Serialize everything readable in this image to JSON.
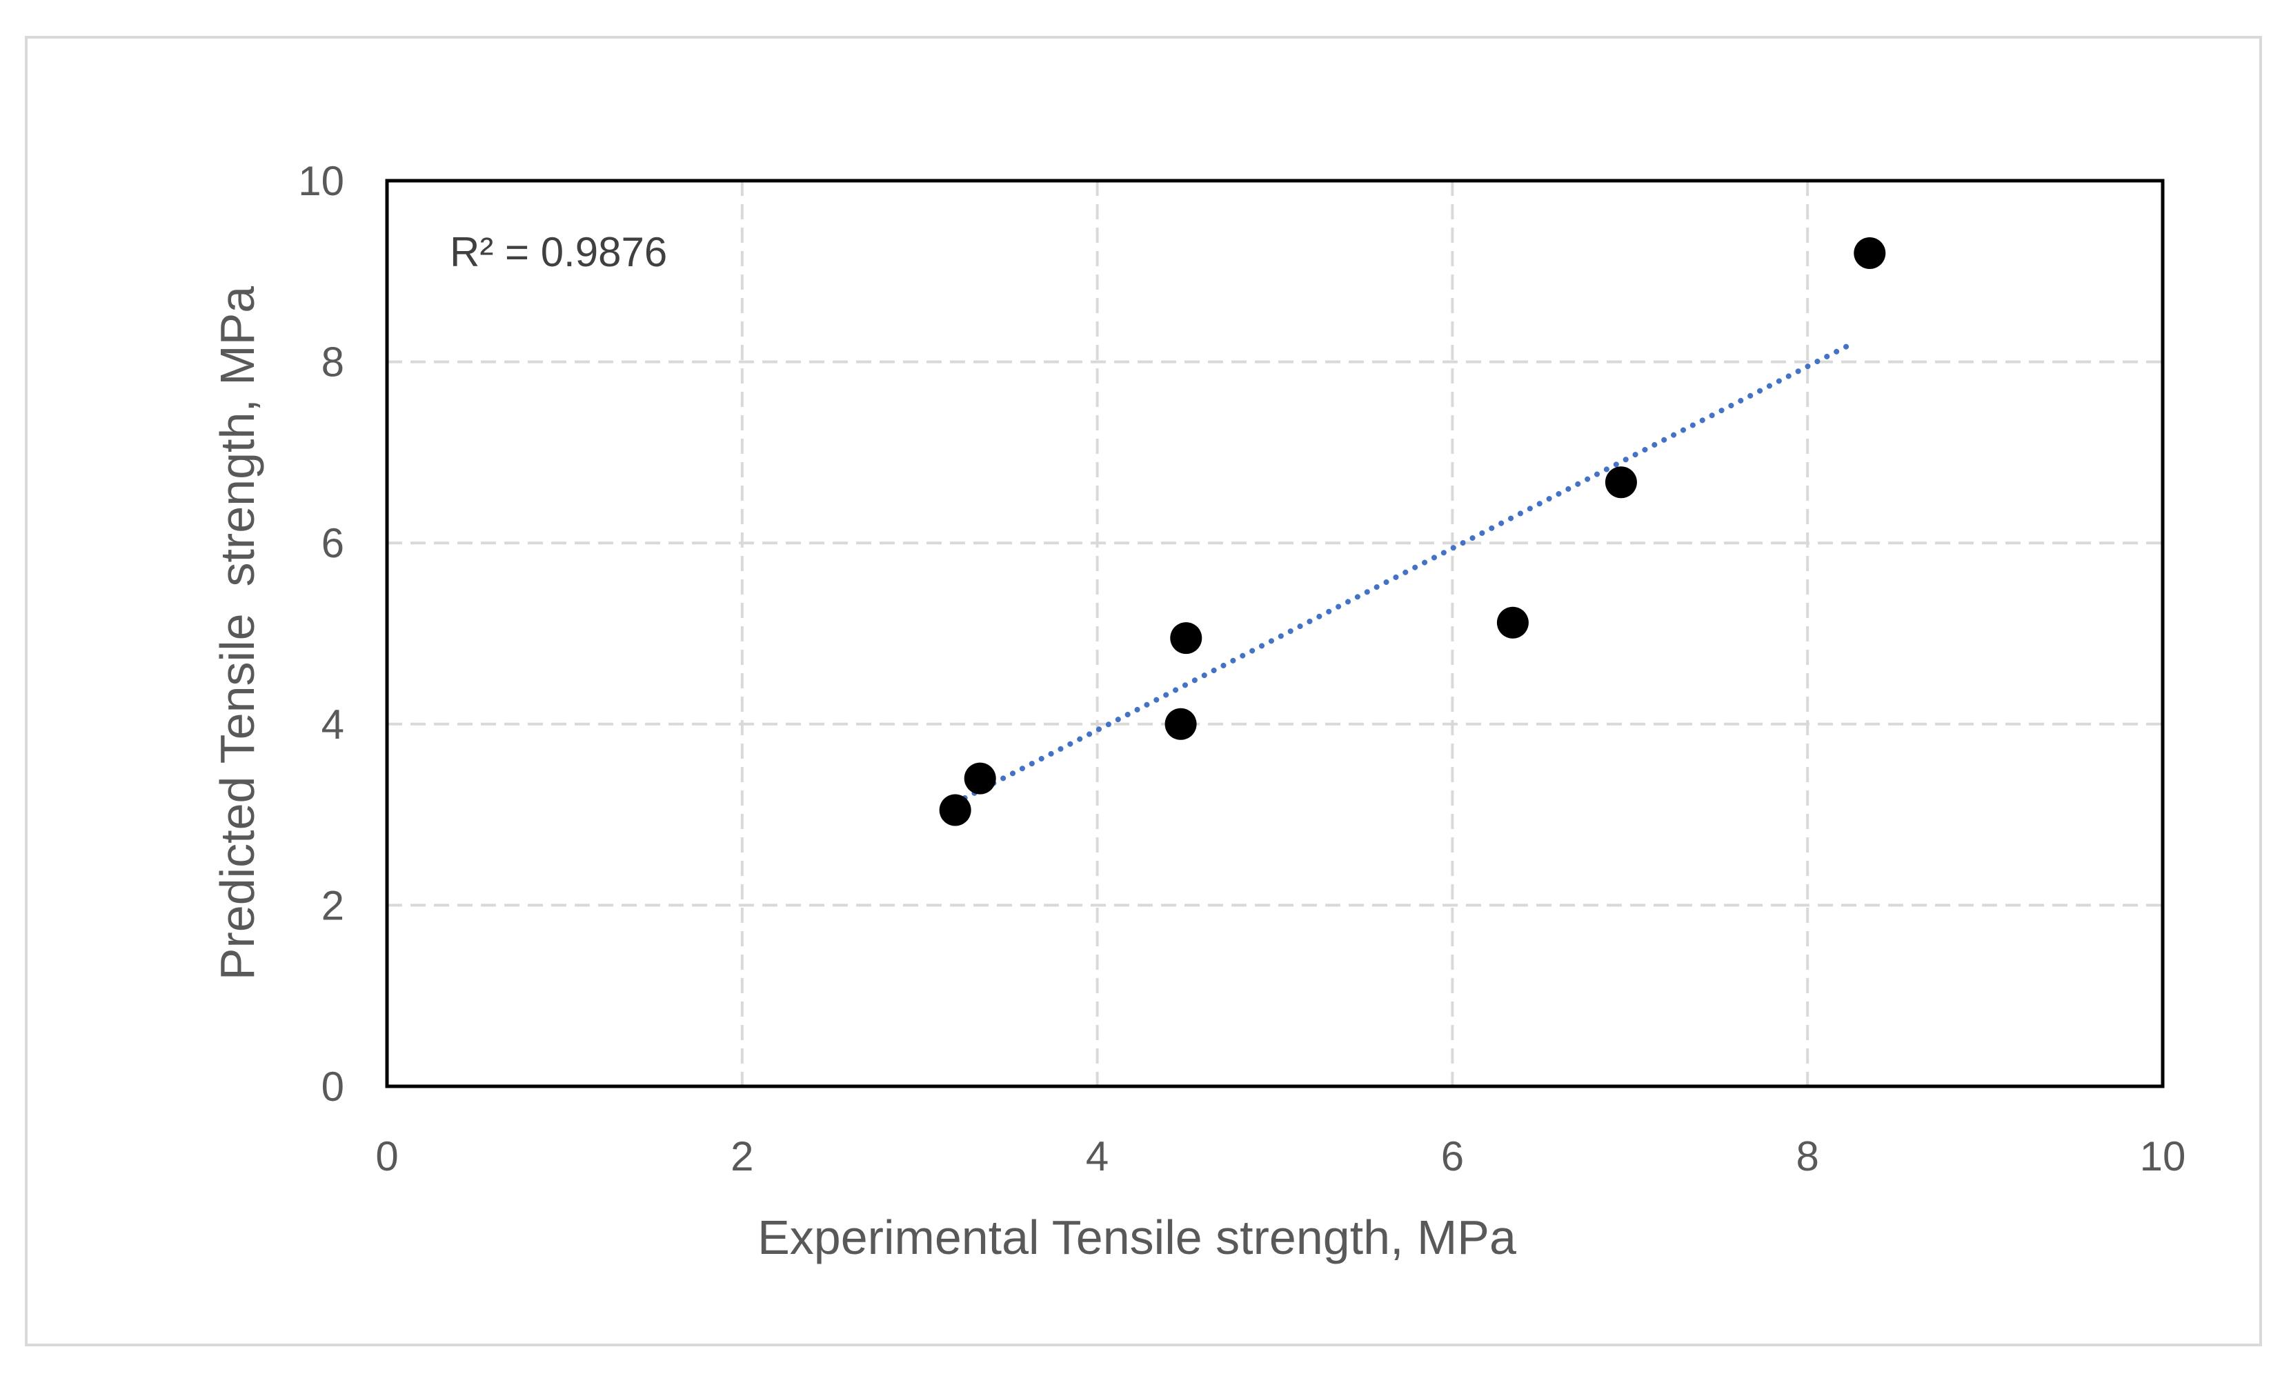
{
  "chart_data": {
    "type": "scatter",
    "title": "",
    "xlabel": "Experimental Tensile strength, MPa",
    "ylabel": "Predicted Tensile  strength, MPa",
    "xlim": [
      0,
      10
    ],
    "ylim": [
      0,
      10
    ],
    "xticks": [
      "0",
      "2",
      "4",
      "6",
      "8",
      "10"
    ],
    "yticks": [
      "0",
      "2",
      "4",
      "6",
      "8",
      "10"
    ],
    "grid": true,
    "series": [
      {
        "name": "Tensile strength",
        "marker_color": "#000000",
        "points": [
          {
            "x": 3.2,
            "y": 3.05
          },
          {
            "x": 3.34,
            "y": 3.4
          },
          {
            "x": 4.47,
            "y": 4.0
          },
          {
            "x": 4.5,
            "y": 4.95
          },
          {
            "x": 6.34,
            "y": 5.12
          },
          {
            "x": 6.95,
            "y": 6.67
          },
          {
            "x": 8.35,
            "y": 9.2
          }
        ]
      }
    ],
    "trendline": {
      "type": "linear",
      "color": "#4472c4",
      "style": "dotted",
      "x_start": 3.2,
      "x_end": 8.25,
      "y_start": 3.13,
      "y_end": 8.2
    },
    "annotations": [
      {
        "text": "R² = 0.9876",
        "position": "top-left"
      }
    ]
  }
}
